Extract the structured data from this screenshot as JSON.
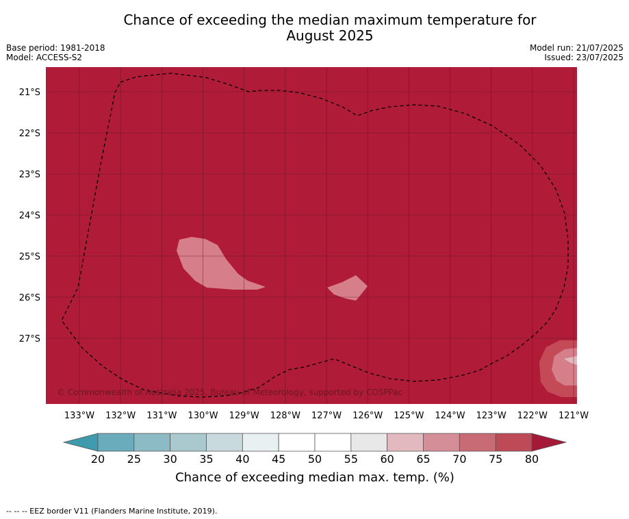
{
  "title_line1": "Chance of exceeding the median maximum temperature for",
  "title_line2": "August 2025",
  "meta_left": [
    "Base period: 1981-2018",
    "Model: ACCESS-S2"
  ],
  "meta_right": [
    "Model run: 21/07/2025",
    "Issued: 23/07/2025"
  ],
  "map": {
    "lat_labels": [
      "21°S",
      "22°S",
      "23°S",
      "24°S",
      "25°S",
      "26°S",
      "27°S"
    ],
    "lon_labels": [
      "133°W",
      "132°W",
      "131°W",
      "130°W",
      "129°W",
      "128°W",
      "127°W",
      "126°W",
      "125°W",
      "124°W",
      "123°W",
      "122°W",
      "121°W"
    ],
    "copyright": "© Commonwealth of Australia 2025, Bureau of Meteorology, supported by COSPPac",
    "background_color": "#b01c38",
    "patch_color_70_75": "#c44a57",
    "patch_color_65_70": "#d67f8a",
    "eez_line_style": "dashed"
  },
  "colorbar": {
    "ticks": [
      "20",
      "25",
      "30",
      "35",
      "40",
      "45",
      "50",
      "55",
      "60",
      "65",
      "70",
      "75",
      "80"
    ],
    "colors": [
      "#6aabbc",
      "#8cbac5",
      "#a9c9cf",
      "#c9dade",
      "#e9f0f2",
      "#ffffff",
      "#ffffff",
      "#e8e8e8",
      "#e2b9bf",
      "#d48e97",
      "#c86b75",
      "#bd4a56"
    ],
    "under_color": "#3f9aad",
    "over_color": "#a51837",
    "label": "Chance of exceeding median max. temp. (%)"
  },
  "footnote": "--  --  -- EEZ border V11 (Flanders Marine Institute, 2019)."
}
